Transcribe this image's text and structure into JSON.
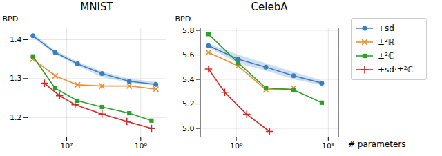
{
  "chart_data": [
    {
      "type": "line",
      "title": "MNIST",
      "y_label": "BPD",
      "log": "x",
      "grid": true,
      "xlim": [
        3000000,
        220000000
      ],
      "xticks": [
        {
          "value": 10000000,
          "label": "10⁷"
        },
        {
          "value": 100000000,
          "label": "10⁸"
        }
      ],
      "ylim": [
        1.15,
        1.43
      ],
      "yticks": [
        1.2,
        1.3,
        1.4
      ],
      "series": [
        {
          "name": "+sd",
          "color": "#3a7ebf",
          "marker": "circle",
          "x": [
            3500000,
            7000000,
            14000000,
            30000000,
            70000000,
            160000000
          ],
          "values": [
            1.41,
            1.367,
            1.338,
            1.313,
            1.293,
            1.285
          ],
          "lower": [
            1.405,
            1.362,
            1.333,
            1.303,
            1.289,
            1.281
          ],
          "upper": [
            1.415,
            1.372,
            1.343,
            1.318,
            1.299,
            1.291
          ]
        },
        {
          "name": "±²ℝ",
          "color": "#f28e2b",
          "marker": "x",
          "x": [
            3500000,
            7000000,
            14000000,
            30000000,
            70000000,
            160000000
          ],
          "values": [
            1.35,
            1.307,
            1.284,
            1.281,
            1.281,
            1.273
          ]
        },
        {
          "name": "±²ℂ",
          "color": "#2ca02c",
          "marker": "square",
          "x": [
            3500000,
            7000000,
            14000000,
            30000000,
            70000000,
            140000000
          ],
          "values": [
            1.357,
            1.275,
            1.243,
            1.227,
            1.211,
            1.192
          ]
        },
        {
          "name": "+sd·±²ℂ",
          "color": "#d62728",
          "marker": "plus",
          "x": [
            5000000,
            8000000,
            13000000,
            30000000,
            65000000,
            140000000
          ],
          "values": [
            1.288,
            1.256,
            1.233,
            1.209,
            1.19,
            1.172
          ]
        }
      ]
    },
    {
      "type": "line",
      "title": "CelebA",
      "y_label": "BPD",
      "x_label": "# parameters",
      "log": "x",
      "grid": true,
      "xlim": [
        41000000,
        1300000000
      ],
      "xticks": [
        {
          "value": 100000000,
          "label": "10⁸"
        },
        {
          "value": 1000000000,
          "label": "10⁹"
        }
      ],
      "ylim": [
        4.93,
        5.82
      ],
      "yticks": [
        {
          "value": 5,
          "label": "5.0"
        },
        5.2,
        5.4,
        5.6,
        5.8
      ],
      "series": [
        {
          "name": "+sd",
          "color": "#3a7ebf",
          "marker": "circle",
          "x": [
            50000000,
            105000000,
            210000000,
            420000000,
            850000000
          ],
          "values": [
            5.675,
            5.565,
            5.5,
            5.43,
            5.37
          ],
          "lower": [
            5.66,
            5.53,
            5.47,
            5.4,
            5.35
          ],
          "upper": [
            5.69,
            5.6,
            5.53,
            5.46,
            5.39
          ]
        },
        {
          "name": "±²ℝ",
          "color": "#f28e2b",
          "marker": "x",
          "x": [
            50000000,
            105000000,
            210000000,
            420000000
          ],
          "values": [
            5.62,
            5.51,
            5.315,
            5.33
          ]
        },
        {
          "name": "±²ℂ",
          "color": "#2ca02c",
          "marker": "square",
          "x": [
            50000000,
            105000000,
            210000000,
            420000000,
            850000000
          ],
          "values": [
            5.77,
            5.535,
            5.33,
            5.315,
            5.21
          ]
        },
        {
          "name": "+sd·±²ℂ",
          "color": "#d62728",
          "marker": "plus",
          "x": [
            50000000,
            75000000,
            130000000,
            230000000
          ],
          "values": [
            5.485,
            5.295,
            5.115,
            4.975
          ]
        }
      ]
    }
  ]
}
